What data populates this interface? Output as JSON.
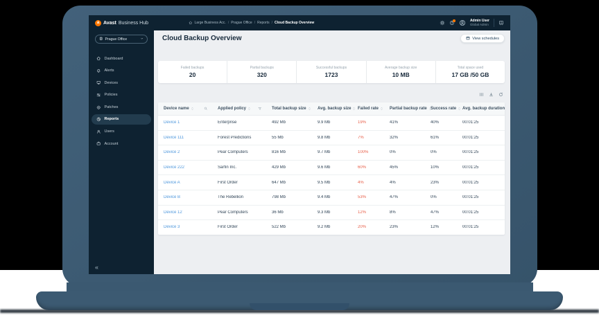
{
  "header": {
    "brand": {
      "bold": "Avast",
      "rest": "Business Hub"
    },
    "breadcrumb": [
      "Large Business Acc.",
      "Prague Office",
      "Reports",
      "Cloud Backup Overview"
    ],
    "icons_right": [
      "settings-icon",
      "notifications-icon",
      "avatar",
      "apps-icon"
    ],
    "user": {
      "name": "Admin User",
      "role": "Global Admin"
    }
  },
  "sidebar": {
    "location": "Prague Office",
    "items": [
      {
        "label": "Dashboard",
        "icon": "home",
        "active": false
      },
      {
        "label": "Alerts",
        "icon": "bell",
        "active": false
      },
      {
        "label": "Devices",
        "icon": "monitor",
        "active": false
      },
      {
        "label": "Policies",
        "icon": "sliders",
        "active": false
      },
      {
        "label": "Patches",
        "icon": "patch",
        "active": false
      },
      {
        "label": "Reports",
        "icon": "pie",
        "active": true
      },
      {
        "label": "Users",
        "icon": "user",
        "active": false
      },
      {
        "label": "Account",
        "icon": "briefcase",
        "active": false
      }
    ],
    "collapse_glyph": "«"
  },
  "main": {
    "title": "Cloud Backup Overview",
    "view_schedules_label": "View schedules",
    "stats": [
      {
        "label": "Failed backups",
        "value": "20"
      },
      {
        "label": "Partial backups",
        "value": "320"
      },
      {
        "label": "Successful backups",
        "value": "1723"
      },
      {
        "label": "Average backup size",
        "value": "10 MB"
      },
      {
        "label": "Total space used",
        "value": "17 GB /50 GB"
      }
    ],
    "toolbar_icons": [
      "columns-icon",
      "download-icon",
      "refresh-icon"
    ],
    "table": {
      "columns": [
        "Device name",
        "Applied policy",
        "Total backup size",
        "Avg. backup size",
        "Failed rate",
        "Partial backup rate",
        "Success rate",
        "Avg. backup duration"
      ],
      "rows": [
        {
          "device": "Device 1",
          "policy": "Enterprise",
          "total": "492 Mb",
          "avg": "9.9 Mb",
          "failed": "19%",
          "partial": "41%",
          "success": "40%",
          "duration": "00:01:25"
        },
        {
          "device": "Device 111",
          "policy": "Forest Predictions",
          "total": "55 Mb",
          "avg": "9.8 Mb",
          "failed": "7%",
          "partial": "32%",
          "success": "61%",
          "duration": "00:01:25"
        },
        {
          "device": "Device 2",
          "policy": "Pear Computers",
          "total": "816 Mb",
          "avg": "9.7 Mb",
          "failed": "100%",
          "partial": "0%",
          "success": "0%",
          "duration": "00:01:25"
        },
        {
          "device": "Device 222",
          "policy": "Sarfin Inc.",
          "total": "429 Mb",
          "avg": "9.6 Mb",
          "failed": "60%",
          "partial": "45%",
          "success": "10%",
          "duration": "00:01:25"
        },
        {
          "device": "Device A",
          "policy": "First Order",
          "total": "647 Mb",
          "avg": "9.5 Mb",
          "failed": "4%",
          "partial": "4%",
          "success": "23%",
          "duration": "00:01:25"
        },
        {
          "device": "Device B",
          "policy": "The Rebellion",
          "total": "798 Mb",
          "avg": "9.4 Mb",
          "failed": "53%",
          "partial": "47%",
          "success": "0%",
          "duration": "00:01:25"
        },
        {
          "device": "Device 12",
          "policy": "Pear Computers",
          "total": "36 Mb",
          "avg": "9.3 Mb",
          "failed": "12%",
          "partial": "8%",
          "success": "47%",
          "duration": "00:01:25"
        },
        {
          "device": "Device 3",
          "policy": "First Order",
          "total": "522 Mb",
          "avg": "9.2 Mb",
          "failed": "20%",
          "partial": "23%",
          "success": "12%",
          "duration": "00:01:25"
        }
      ]
    }
  },
  "colors": {
    "brand_orange": "#ff7800",
    "link_blue": "#4e97dc",
    "failed_red": "#e8604a",
    "frame_slate": "#3c5a72",
    "navy": "#0e2231",
    "content_bg": "#edeff2"
  }
}
